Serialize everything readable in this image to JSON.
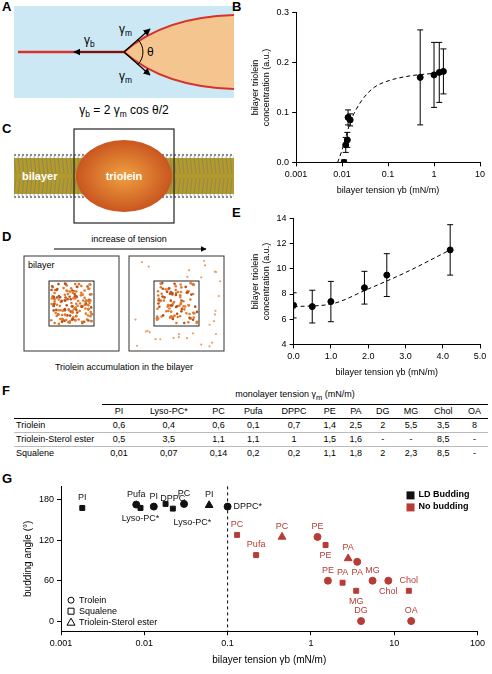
{
  "diagram_A": {
    "letter": "A",
    "bilayer_tension": "γb",
    "monolayer_tension": "γm",
    "angle": "θ",
    "equation": "γb = 2 γm cos θ/2"
  },
  "simulation_C": {
    "letter": "C",
    "labels": [
      "bilayer",
      "triolein"
    ]
  },
  "simulation_D": {
    "letter": "D",
    "arrow_label": "increase of tension",
    "box_label": "bilayer",
    "caption": "Triolein accumulation in the bilayer"
  },
  "chart_data": [
    {
      "letter": "B",
      "type": "scatter",
      "x_label": "bilayer tension γb (mN/m)",
      "y_label": "bilayer triolein concentration (a.u.)",
      "log": "x",
      "grid": false,
      "xlim": [
        0.001,
        10
      ],
      "xticks": [
        0.001,
        0.01,
        0.1,
        1,
        10
      ],
      "ylim": [
        0,
        0.3
      ],
      "yticks": [
        {
          "value": 0,
          "label": "0.0"
        },
        0.1,
        0.2,
        0.3
      ],
      "points": {
        "color": "#000000",
        "marker": "circle",
        "x": [
          0.011,
          0.012,
          0.013,
          0.0135,
          0.015,
          0.5,
          1.0,
          1.3,
          1.6
        ],
        "y": [
          0.0,
          0.035,
          0.045,
          0.09,
          0.085,
          0.17,
          0.175,
          0.18,
          0.182
        ],
        "errors": [
          0.005,
          0.015,
          0.015,
          0.015,
          0.012,
          0.095,
          0.065,
          0.06,
          0.045
        ]
      },
      "fit": {
        "color": "#000000",
        "line_style": "dashed",
        "x": [
          0.008,
          0.01,
          0.012,
          0.015,
          0.02,
          0.03,
          0.05,
          0.1,
          0.3,
          1,
          2
        ],
        "y": [
          0.0,
          0.025,
          0.05,
          0.08,
          0.105,
          0.13,
          0.15,
          0.163,
          0.173,
          0.178,
          0.18
        ]
      }
    },
    {
      "letter": "E",
      "type": "scatter",
      "x_label": "bilayer tension γb (mN/m)",
      "y_label": "bilayer triolein concentration (a.u.)",
      "grid": false,
      "xlim": [
        0,
        5
      ],
      "xticks": [
        {
          "value": 0,
          "label": "0.0"
        },
        {
          "value": 1,
          "label": "1.0"
        },
        {
          "value": 2,
          "label": "2.0"
        },
        {
          "value": 3,
          "label": "3.0"
        },
        {
          "value": 4,
          "label": "4.0"
        },
        {
          "value": 5,
          "label": "5.0"
        }
      ],
      "ylim": [
        4,
        14
      ],
      "yticks": [
        4,
        6,
        8,
        10,
        12,
        14
      ],
      "points": {
        "color": "#000000",
        "marker": "circle",
        "x": [
          0.0,
          0.5,
          1.0,
          1.9,
          2.5,
          4.2
        ],
        "y": [
          7.1,
          7.0,
          7.4,
          8.5,
          9.5,
          11.5
        ],
        "errors": [
          1.0,
          1.3,
          1.6,
          1.3,
          1.7,
          2.0
        ]
      },
      "fit": {
        "color": "#000000",
        "line_style": "dashed",
        "x": [
          0,
          1,
          2,
          3,
          4.2
        ],
        "y": [
          7.0,
          7.2,
          8.4,
          9.7,
          11.5
        ]
      }
    },
    {
      "letter": "G",
      "type": "scatter",
      "x_label": "bilayer tension γb (mN/m)",
      "y_label": "budding angle (°)",
      "log": "x",
      "grid": false,
      "legend": "top-right",
      "xlim": [
        0.001,
        100
      ],
      "xticks": [
        0.001,
        0.01,
        0.1,
        1,
        10,
        100
      ],
      "ylim": [
        -15,
        200
      ],
      "yticks": [
        0,
        60,
        120,
        180
      ],
      "threshold": 0.1,
      "outcomes": [
        {
          "name": "LD Budding",
          "color": "#111111"
        },
        {
          "name": "No budding",
          "color": "#b83b35"
        }
      ],
      "series": [
        {
          "name": "Trolein",
          "marker": "circle",
          "points": [
            {
              "x": 0.008,
              "y": 173,
              "label": "Pufa",
              "outcome": "LD Budding"
            },
            {
              "x": 0.013,
              "y": 170,
              "label": "PI",
              "outcome": "LD Budding"
            },
            {
              "x": 0.03,
              "y": 174,
              "label": "PC",
              "outcome": "LD Budding"
            },
            {
              "x": 0.1,
              "y": 170,
              "label": "DPPC*",
              "outcome": "LD Budding"
            },
            {
              "x": 1.2,
              "y": 125,
              "label": "PE",
              "outcome": "No budding"
            },
            {
              "x": 3.6,
              "y": 88,
              "label": "PA",
              "outcome": "No budding"
            },
            {
              "x": 1.6,
              "y": 60,
              "label": "PE",
              "outcome": "No budding"
            },
            {
              "x": 5.5,
              "y": 60,
              "label": "MG",
              "outcome": "No budding"
            },
            {
              "x": 8.5,
              "y": 60,
              "label": "Chol",
              "outcome": "No budding"
            },
            {
              "x": 4,
              "y": 0,
              "label": "DG",
              "outcome": "No budding"
            },
            {
              "x": 16,
              "y": 0,
              "label": "OA",
              "outcome": "No budding"
            }
          ]
        },
        {
          "name": "Squalene",
          "marker": "square",
          "points": [
            {
              "x": 0.0018,
              "y": 168,
              "label": "PI",
              "outcome": "LD Budding"
            },
            {
              "x": 0.009,
              "y": 168,
              "label": "Lyso-PC*",
              "outcome": "LD Budding"
            },
            {
              "x": 0.018,
              "y": 174,
              "label": "Lyso-PC*",
              "outcome": "LD Budding"
            },
            {
              "x": 0.022,
              "y": 167,
              "label": "DPPC",
              "outcome": "LD Budding"
            },
            {
              "x": 0.13,
              "y": 128,
              "label": "PC",
              "outcome": "No budding"
            },
            {
              "x": 0.22,
              "y": 98,
              "label": "Pufa",
              "outcome": "No budding"
            },
            {
              "x": 1.5,
              "y": 113,
              "label": "PE",
              "outcome": "No budding"
            },
            {
              "x": 2.4,
              "y": 57,
              "label": "PA",
              "outcome": "No budding"
            },
            {
              "x": 3.5,
              "y": 45,
              "label": "MG",
              "outcome": "No budding"
            },
            {
              "x": 15,
              "y": 45,
              "label": "Chol",
              "outcome": "No budding"
            }
          ]
        },
        {
          "name": "Triolein-Sterol ester",
          "marker": "triangle",
          "points": [
            {
              "x": 0.06,
              "y": 172,
              "label": "PI",
              "outcome": "LD Budding"
            },
            {
              "x": 0.45,
              "y": 125,
              "label": "PC",
              "outcome": "No budding"
            },
            {
              "x": 2.8,
              "y": 93,
              "label": "PA",
              "outcome": "No budding"
            }
          ]
        }
      ]
    }
  ],
  "table_F": {
    "letter": "F",
    "title": "monolayer tension γm (mN/m)",
    "columns": [
      "PI",
      "Lyso-PC*",
      "PC",
      "Pufa",
      "DPPC",
      "PE",
      "PA",
      "DG",
      "MG",
      "Chol",
      "OA"
    ],
    "rows": [
      [
        "Triolein",
        "0,6",
        "0,4",
        "0,6",
        "0,1",
        "0,7",
        "1,4",
        "2,5",
        "2",
        "5,5",
        "3,5",
        "8"
      ],
      [
        "Triolein-Sterol ester",
        "0,5",
        "3,5",
        "1,1",
        "1,1",
        "1",
        "1,5",
        "1,6",
        "-",
        "-",
        "8,5",
        "-"
      ],
      [
        "Squalene",
        "0,01",
        "0,07",
        "0,14",
        "0,2",
        "0,2",
        "1,1",
        "1,8",
        "2",
        "2,3",
        "8,5",
        "-"
      ]
    ]
  }
}
